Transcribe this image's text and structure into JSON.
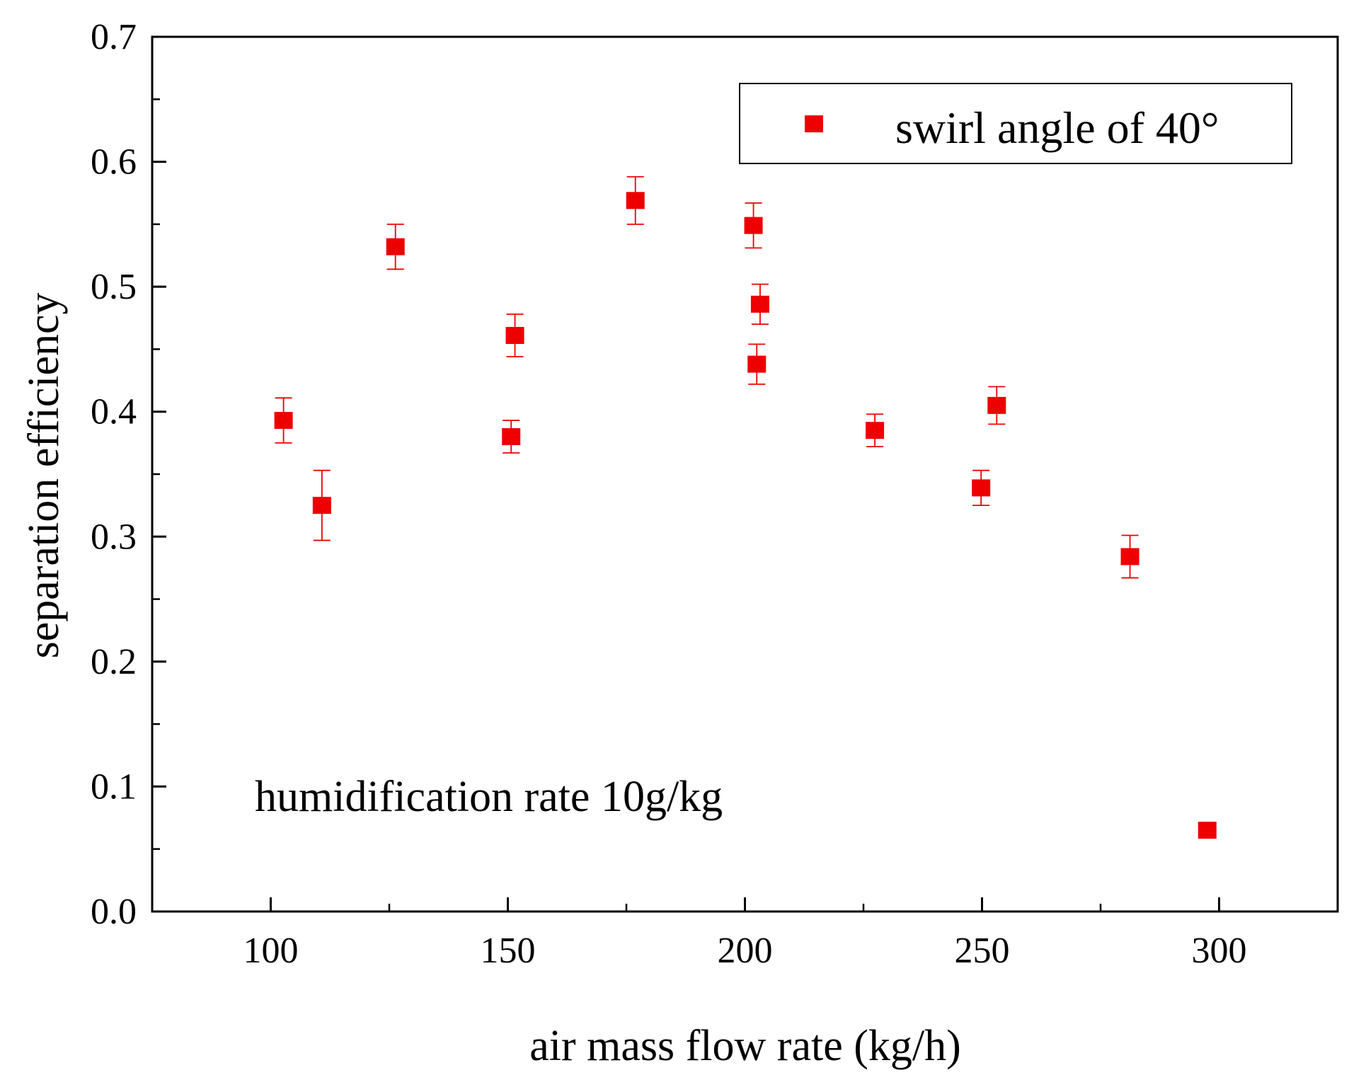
{
  "chart_data": {
    "type": "scatter",
    "title": "",
    "xlabel": "air mass flow rate (kg/h)",
    "ylabel": "separation efficiency",
    "xlim": [
      75,
      325
    ],
    "ylim": [
      0.0,
      0.7
    ],
    "x_ticks": [
      100,
      150,
      200,
      250,
      300
    ],
    "x_tick_labels": [
      "100",
      "150",
      "200",
      "250",
      "300"
    ],
    "y_ticks": [
      0.0,
      0.1,
      0.2,
      0.3,
      0.4,
      0.5,
      0.6,
      0.7
    ],
    "y_tick_labels": [
      "0.0",
      "0.1",
      "0.2",
      "0.3",
      "0.4",
      "0.5",
      "0.6",
      "0.7"
    ],
    "grid": false,
    "legend_position": "top-right",
    "annotation": "humidification rate 10g/kg",
    "series": [
      {
        "name": "swirl angle of 40°",
        "color": "#ee0000",
        "marker": "square",
        "points": [
          {
            "x": 102.7,
            "y": 0.393,
            "err": 0.018
          },
          {
            "x": 110.8,
            "y": 0.325,
            "err": 0.028
          },
          {
            "x": 126.3,
            "y": 0.532,
            "err": 0.018
          },
          {
            "x": 150.7,
            "y": 0.38,
            "err": 0.013
          },
          {
            "x": 151.5,
            "y": 0.461,
            "err": 0.017
          },
          {
            "x": 176.9,
            "y": 0.569,
            "err": 0.019
          },
          {
            "x": 201.8,
            "y": 0.549,
            "err": 0.018
          },
          {
            "x": 202.5,
            "y": 0.438,
            "err": 0.016
          },
          {
            "x": 203.2,
            "y": 0.486,
            "err": 0.016
          },
          {
            "x": 227.4,
            "y": 0.385,
            "err": 0.013
          },
          {
            "x": 249.8,
            "y": 0.339,
            "err": 0.014
          },
          {
            "x": 253.1,
            "y": 0.405,
            "err": 0.015
          },
          {
            "x": 281.2,
            "y": 0.284,
            "err": 0.017
          },
          {
            "x": 297.5,
            "y": 0.065,
            "err": 0.0
          }
        ]
      }
    ]
  }
}
